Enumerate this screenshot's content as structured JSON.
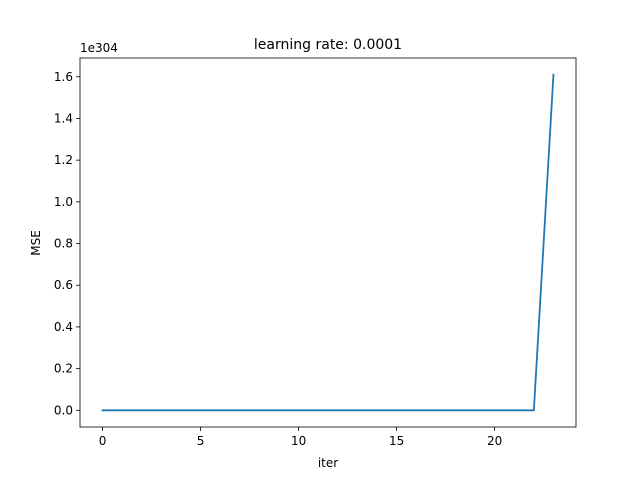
{
  "chart_data": {
    "type": "line",
    "title": "learning rate: 0.0001",
    "xlabel": "iter",
    "ylabel": "MSE",
    "y_offset_label": "1e304",
    "xlim": [
      -1.15,
      24.15
    ],
    "ylim": [
      -0.08,
      1.69
    ],
    "x_ticks": [
      0,
      5,
      10,
      15,
      20
    ],
    "x_tick_labels": [
      "0",
      "5",
      "10",
      "15",
      "20"
    ],
    "y_ticks": [
      0.0,
      0.2,
      0.4,
      0.6,
      0.8,
      1.0,
      1.2,
      1.4,
      1.6
    ],
    "y_tick_labels": [
      "0.0",
      "0.2",
      "0.4",
      "0.6",
      "0.8",
      "1.0",
      "1.2",
      "1.4",
      "1.6"
    ],
    "grid": false,
    "series": [
      {
        "color": "#1f77b4",
        "x": [
          0,
          1,
          2,
          3,
          4,
          5,
          6,
          7,
          8,
          9,
          10,
          11,
          12,
          13,
          14,
          15,
          16,
          17,
          18,
          19,
          20,
          21,
          22,
          23
        ],
        "y": [
          0,
          0,
          0,
          0,
          0,
          0,
          0,
          0,
          0,
          0,
          0,
          0,
          0,
          0,
          0,
          0,
          0,
          0,
          0,
          0,
          0,
          0,
          0,
          1.61
        ]
      }
    ]
  }
}
